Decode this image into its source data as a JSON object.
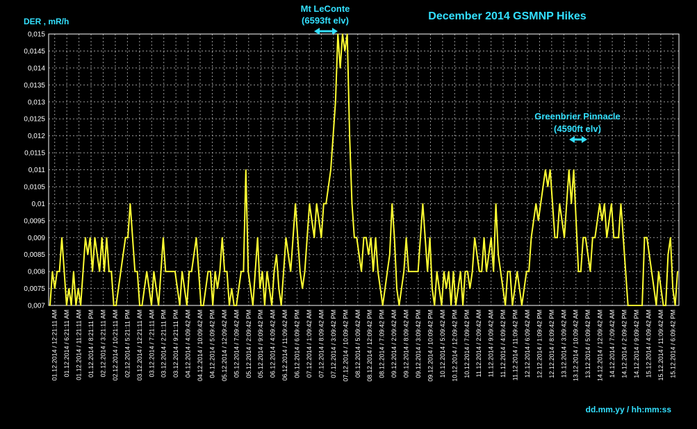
{
  "chart_data": {
    "type": "line",
    "title": "December 2014 GSMNP Hikes",
    "ylabel": "DER , mR/h",
    "xlabel": "dd.mm.yy / hh:mm:ss",
    "ylim": [
      0.007,
      0.015
    ],
    "yticks": [
      "0,007",
      "0,0075",
      "0,008",
      "0,0085",
      "0,009",
      "0,0095",
      "0,01",
      "0,0105",
      "0,011",
      "0,0115",
      "0,012",
      "0,0125",
      "0,013",
      "0,0135",
      "0,014",
      "0,0145",
      "0,015"
    ],
    "xticks": [
      "01.12.2014 / 12:21:11 AM",
      "01.12.2014 / 6:21:11 AM",
      "01.12.2014 / 11:21:11 AM",
      "01.12.2014 / 8:21:11 PM",
      "02.12.2014 / 3:21:11 AM",
      "02.12.2014 / 10:21:11 AM",
      "02.12.2014 / 5:21:11 PM",
      "03.12.2014 / 12:21:11 AM",
      "03.12.2014 / 7:21:11 AM",
      "03.12.2014 / 2:21:11 PM",
      "03.12.2014 / 9:21:11 PM",
      "04.12.2014 / 4:09:42 AM",
      "04.12.2014 / 10:09:42 AM",
      "04.12.2014 / 5:09:42 PM",
      "05.12.2014 / 12:09:42 AM",
      "05.12.2014 / 7:09:42 AM",
      "05.12.2014 / 2:09:42 PM",
      "05.12.2014 / 9:09:42 PM",
      "06.12.2014 / 4:09:42 AM",
      "06.12.2014 / 11:09:42 AM",
      "06.12.2014 / 6:09:42 PM",
      "07.12.2014 / 1:09:42 AM",
      "07.12.2014 / 8:09:42 AM",
      "07.12.2014 / 3:09:42 PM",
      "07.12.2014 / 10:09:42 PM",
      "08.12.2014 / 5:09:42 AM",
      "08.12.2014 / 12:09:42 PM",
      "08.12.2014 / 7:09:42 PM",
      "09.12.2014 / 2:09:42 AM",
      "09.12.2014 / 8:09:42 AM",
      "09.12.2014 / 3:09:42 PM",
      "09.12.2014 / 10:09:42 PM",
      "10.12.2014 / 5:09:42 AM",
      "10.12.2014 / 12:09:42 PM",
      "10.12.2014 / 7:09:42 PM",
      "11.12.2014 / 2:09:42 AM",
      "11.12.2014 / 9:09:42 AM",
      "11.12.2014 / 4:09:42 PM",
      "11.12.2014 / 11:09:42 PM",
      "12.12.2014 / 6:09:42 AM",
      "12.12.2014 / 1:09:42 PM",
      "12.12.2014 / 8:09:42 PM",
      "13.12.2014 / 3:09:42 AM",
      "13.12.2014 / 10:09:42 AM",
      "13.12.2014 / 5:09:42 PM",
      "14.12.2014 / 12:09:42 AM",
      "14.12.2014 / 7:09:42 AM",
      "14.12.2014 / 2:09:42 PM",
      "14.12.2014 / 9:09:42 PM",
      "15.12.2014 / 4:09:42 AM",
      "15.12.2014 / 11:09:42 AM",
      "15.12.2014 / 6:09:42 PM"
    ],
    "grid": true,
    "series": [
      {
        "color": "#ffff33",
        "values": [
          0.007,
          0.008,
          0.0075,
          0.008,
          0.008,
          0.009,
          0.008,
          0.007,
          0.0075,
          0.007,
          0.008,
          0.007,
          0.0075,
          0.007,
          0.008,
          0.009,
          0.0085,
          0.009,
          0.008,
          0.009,
          0.0085,
          0.008,
          0.009,
          0.008,
          0.009,
          0.008,
          0.008,
          0.007,
          0.007,
          0.0075,
          0.008,
          0.0085,
          0.009,
          0.009,
          0.01,
          0.009,
          0.008,
          0.008,
          0.007,
          0.007,
          0.0075,
          0.008,
          0.0075,
          0.007,
          0.008,
          0.0075,
          0.007,
          0.008,
          0.009,
          0.008,
          0.008,
          0.008,
          0.008,
          0.008,
          0.0075,
          0.007,
          0.008,
          0.0075,
          0.007,
          0.008,
          0.008,
          0.0085,
          0.009,
          0.008,
          0.007,
          0.007,
          0.0075,
          0.008,
          0.008,
          0.007,
          0.008,
          0.0075,
          0.008,
          0.009,
          0.008,
          0.008,
          0.007,
          0.0075,
          0.007,
          0.007,
          0.0075,
          0.008,
          0.008,
          0.011,
          0.008,
          0.0075,
          0.007,
          0.008,
          0.009,
          0.0075,
          0.008,
          0.007,
          0.008,
          0.0075,
          0.007,
          0.008,
          0.0085,
          0.0075,
          0.007,
          0.008,
          0.009,
          0.0085,
          0.008,
          0.009,
          0.01,
          0.009,
          0.008,
          0.0075,
          0.008,
          0.009,
          0.01,
          0.0095,
          0.009,
          0.01,
          0.0095,
          0.009,
          0.01,
          0.01,
          0.0105,
          0.011,
          0.012,
          0.013,
          0.015,
          0.014,
          0.015,
          0.0145,
          0.015,
          0.012,
          0.01,
          0.009,
          0.009,
          0.0085,
          0.008,
          0.009,
          0.009,
          0.0085,
          0.009,
          0.008,
          0.009,
          0.008,
          0.0075,
          0.007,
          0.0075,
          0.008,
          0.0085,
          0.01,
          0.009,
          0.0075,
          0.007,
          0.0075,
          0.008,
          0.009,
          0.008,
          0.008,
          0.008,
          0.008,
          0.008,
          0.009,
          0.01,
          0.009,
          0.008,
          0.009,
          0.0075,
          0.007,
          0.008,
          0.0075,
          0.007,
          0.008,
          0.0075,
          0.008,
          0.007,
          0.008,
          0.007,
          0.0075,
          0.008,
          0.007,
          0.008,
          0.008,
          0.0075,
          0.008,
          0.009,
          0.0085,
          0.008,
          0.008,
          0.009,
          0.008,
          0.0085,
          0.009,
          0.008,
          0.01,
          0.0085,
          0.008,
          0.0075,
          0.007,
          0.008,
          0.008,
          0.007,
          0.0075,
          0.008,
          0.0075,
          0.007,
          0.0075,
          0.008,
          0.008,
          0.009,
          0.0095,
          0.01,
          0.0095,
          0.01,
          0.0105,
          0.011,
          0.0105,
          0.011,
          0.01,
          0.009,
          0.009,
          0.01,
          0.0095,
          0.009,
          0.01,
          0.011,
          0.01,
          0.011,
          0.0095,
          0.008,
          0.008,
          0.009,
          0.009,
          0.0085,
          0.008,
          0.009,
          0.009,
          0.0095,
          0.01,
          0.0095,
          0.01,
          0.009,
          0.0095,
          0.01,
          0.009,
          0.009,
          0.009,
          0.01,
          0.009,
          0.008,
          0.007,
          0.007,
          0.007,
          0.007,
          0.007,
          0.007,
          0.007,
          0.009,
          0.009,
          0.0085,
          0.008,
          0.0075,
          0.007,
          0.008,
          0.0075,
          0.007,
          0.007,
          0.0085,
          0.009,
          0.0075,
          0.007,
          0.008
        ]
      }
    ],
    "annotations": [
      {
        "lines": [
          "Mt LeConte",
          "(6593ft elv)"
        ],
        "x_index": 125
      },
      {
        "lines": [
          "Greenbrier Pinnacle",
          "(4590ft elv)"
        ],
        "x_index": 218
      }
    ]
  }
}
